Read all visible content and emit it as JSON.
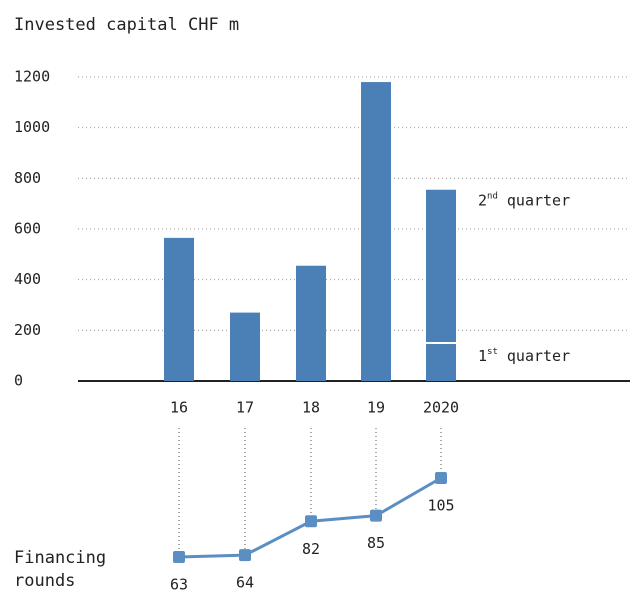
{
  "chart_data": [
    {
      "type": "bar",
      "title": "Invested capital CHF m",
      "categories": [
        "16",
        "17",
        "18",
        "19",
        "2020"
      ],
      "series": [
        {
          "color": "#4b80b6",
          "values": [
            565,
            270,
            455,
            1180,
            null
          ]
        },
        {
          "name": "1st quarter",
          "color": "#4b80b6",
          "values": [
            null,
            null,
            null,
            null,
            150
          ]
        },
        {
          "name": "2nd quarter",
          "color": "#4b80b6",
          "values": [
            null,
            null,
            null,
            null,
            605
          ]
        }
      ],
      "ylim": [
        0,
        1200
      ],
      "yticks": [
        0,
        200,
        400,
        600,
        800,
        1000,
        1200
      ],
      "grid": true
    },
    {
      "type": "line",
      "title": "Financing rounds",
      "color": "#5b8fc4",
      "values": [
        63,
        64,
        82,
        85,
        105
      ]
    }
  ]
}
